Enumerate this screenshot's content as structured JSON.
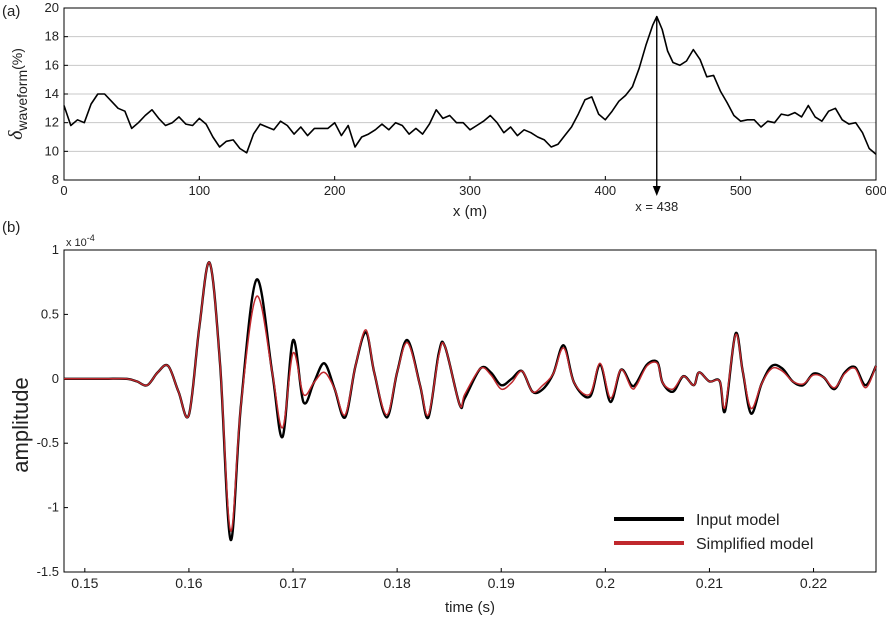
{
  "chart_data": [
    {
      "panel_label": "(a)",
      "type": "line",
      "xlabel": "x (m)",
      "ylabel_symbol": "δ",
      "ylabel_sub": "waveform",
      "ylabel_unit": "(%)",
      "xlim": [
        0,
        600
      ],
      "ylim": [
        8,
        20
      ],
      "xticks": [
        0,
        100,
        200,
        300,
        400,
        500,
        600
      ],
      "yticks": [
        8,
        10,
        12,
        14,
        16,
        18,
        20
      ],
      "grid": "horizontal",
      "annotation": {
        "text": "x = 438",
        "x": 438
      },
      "series": [
        {
          "color": "#000000",
          "x": [
            0,
            5,
            10,
            15,
            20,
            25,
            30,
            35,
            40,
            45,
            50,
            55,
            60,
            65,
            70,
            75,
            80,
            85,
            90,
            95,
            100,
            105,
            110,
            115,
            120,
            125,
            130,
            135,
            140,
            145,
            150,
            155,
            160,
            165,
            170,
            175,
            180,
            185,
            190,
            195,
            200,
            205,
            210,
            215,
            220,
            225,
            230,
            235,
            240,
            245,
            250,
            255,
            260,
            265,
            270,
            275,
            280,
            285,
            290,
            295,
            300,
            305,
            310,
            315,
            320,
            325,
            330,
            335,
            340,
            345,
            350,
            355,
            360,
            365,
            370,
            375,
            380,
            385,
            390,
            395,
            400,
            405,
            410,
            415,
            420,
            425,
            430,
            435,
            438,
            442,
            446,
            450,
            455,
            460,
            465,
            470,
            475,
            480,
            485,
            490,
            495,
            500,
            505,
            510,
            515,
            520,
            525,
            530,
            535,
            540,
            545,
            550,
            555,
            560,
            565,
            570,
            575,
            580,
            585,
            590,
            595,
            600
          ],
          "y": [
            13.2,
            11.8,
            12.2,
            12.0,
            13.3,
            14.0,
            14.0,
            13.5,
            13.0,
            12.8,
            11.6,
            12.0,
            12.5,
            12.9,
            12.3,
            11.8,
            12.0,
            12.4,
            11.9,
            11.8,
            12.3,
            11.9,
            11.0,
            10.3,
            10.7,
            10.8,
            10.2,
            9.9,
            11.2,
            11.9,
            11.7,
            11.5,
            12.1,
            11.8,
            11.2,
            11.7,
            11.1,
            11.6,
            11.6,
            11.6,
            12.0,
            11.1,
            11.8,
            10.3,
            11.0,
            11.2,
            11.5,
            11.9,
            11.5,
            12.0,
            11.8,
            11.2,
            11.6,
            11.2,
            11.9,
            12.9,
            12.3,
            12.5,
            12.0,
            12.0,
            11.5,
            11.8,
            12.1,
            12.5,
            12.0,
            11.3,
            11.7,
            11.1,
            11.5,
            11.3,
            11.0,
            10.8,
            10.3,
            10.5,
            11.1,
            11.7,
            12.6,
            13.6,
            13.8,
            12.6,
            12.2,
            12.8,
            13.5,
            13.9,
            14.5,
            15.8,
            17.4,
            18.8,
            19.4,
            18.5,
            17.0,
            16.2,
            16.0,
            16.3,
            17.1,
            16.4,
            15.2,
            15.3,
            14.2,
            13.4,
            12.5,
            12.1,
            12.2,
            12.2,
            11.7,
            12.1,
            12.0,
            12.6,
            12.5,
            12.7,
            12.4,
            13.2,
            12.4,
            12.1,
            12.8,
            13.0,
            12.2,
            11.9,
            12.0,
            11.3,
            10.2,
            9.8
          ]
        }
      ]
    },
    {
      "panel_label": "(b)",
      "type": "line",
      "xlabel": "time (s)",
      "ylabel": "amplitude",
      "y_multiplier": "x 10",
      "y_multiplier_exp": "-4",
      "xlim": [
        0.148,
        0.226
      ],
      "ylim": [
        -1.5,
        1.0
      ],
      "xticks": [
        0.15,
        0.16,
        0.17,
        0.18,
        0.19,
        0.2,
        0.21,
        0.22
      ],
      "xticklabels": [
        "0.15",
        "0.16",
        "0.17",
        "0.18",
        "0.19",
        "0.2",
        "0.21",
        "0.22"
      ],
      "yticks": [
        1,
        0.5,
        0,
        -0.5,
        -1,
        -1.5
      ],
      "yticklabels": [
        "1",
        "0.5",
        "0",
        "-0.5",
        "-1",
        "-1.5"
      ],
      "grid": "off",
      "legend_position": "bottom-right",
      "series": [
        {
          "name": "Input model",
          "color": "#000000",
          "x": [
            0.148,
            0.15,
            0.152,
            0.154,
            0.155,
            0.156,
            0.157,
            0.158,
            0.159,
            0.16,
            0.161,
            0.162,
            0.163,
            0.164,
            0.165,
            0.1665,
            0.168,
            0.169,
            0.17,
            0.171,
            0.172,
            0.173,
            0.174,
            0.175,
            0.176,
            0.177,
            0.1778,
            0.179,
            0.18,
            0.181,
            0.1822,
            0.183,
            0.184,
            0.1846,
            0.186,
            0.1865,
            0.188,
            0.189,
            0.19,
            0.191,
            0.192,
            0.193,
            0.194,
            0.195,
            0.196,
            0.197,
            0.1985,
            0.1995,
            0.2005,
            0.2015,
            0.2025,
            0.203,
            0.204,
            0.205,
            0.2055,
            0.2065,
            0.2075,
            0.2085,
            0.209,
            0.21,
            0.211,
            0.2115,
            0.2125,
            0.2132,
            0.214,
            0.215,
            0.216,
            0.217,
            0.218,
            0.219,
            0.22,
            0.221,
            0.222,
            0.223,
            0.224,
            0.225,
            0.226
          ],
          "y": [
            0,
            0,
            0,
            0,
            -0.02,
            -0.05,
            0.05,
            0.1,
            -0.1,
            -0.28,
            0.4,
            0.9,
            0.1,
            -1.25,
            -0.2,
            0.77,
            0.05,
            -0.45,
            0.3,
            -0.18,
            -0.03,
            0.12,
            -0.08,
            -0.3,
            0.1,
            0.36,
            0.05,
            -0.3,
            0.05,
            0.3,
            -0.05,
            -0.3,
            0.2,
            0.25,
            -0.2,
            -0.15,
            0.08,
            0.05,
            -0.05,
            0.0,
            0.06,
            -0.1,
            -0.08,
            0.04,
            0.26,
            -0.03,
            -0.14,
            0.11,
            -0.18,
            0.07,
            -0.05,
            -0.03,
            0.11,
            0.13,
            -0.03,
            -0.1,
            0.02,
            -0.05,
            0.05,
            -0.02,
            -0.02,
            -0.25,
            0.35,
            0.06,
            -0.27,
            -0.04,
            0.1,
            0.08,
            -0.02,
            -0.05,
            0.04,
            0.01,
            -0.08,
            0.05,
            0.09,
            -0.05,
            0.1
          ]
        },
        {
          "name": "Simplified model",
          "color": "#c0282d",
          "x": [
            0.148,
            0.15,
            0.152,
            0.154,
            0.155,
            0.156,
            0.157,
            0.158,
            0.159,
            0.16,
            0.161,
            0.162,
            0.163,
            0.164,
            0.165,
            0.1665,
            0.168,
            0.169,
            0.17,
            0.171,
            0.172,
            0.173,
            0.174,
            0.175,
            0.176,
            0.177,
            0.1778,
            0.179,
            0.18,
            0.181,
            0.1822,
            0.183,
            0.184,
            0.1846,
            0.186,
            0.1865,
            0.188,
            0.189,
            0.19,
            0.191,
            0.192,
            0.193,
            0.194,
            0.195,
            0.196,
            0.197,
            0.1985,
            0.1995,
            0.2005,
            0.2015,
            0.2025,
            0.203,
            0.204,
            0.205,
            0.2055,
            0.2065,
            0.2075,
            0.2085,
            0.209,
            0.21,
            0.211,
            0.2115,
            0.2125,
            0.2132,
            0.214,
            0.215,
            0.216,
            0.217,
            0.218,
            0.219,
            0.22,
            0.221,
            0.222,
            0.223,
            0.224,
            0.225,
            0.226
          ],
          "y": [
            0,
            0,
            0,
            0,
            -0.02,
            -0.05,
            0.05,
            0.1,
            -0.1,
            -0.28,
            0.4,
            0.9,
            0.1,
            -1.18,
            -0.2,
            0.64,
            0.05,
            -0.38,
            0.2,
            -0.12,
            -0.03,
            0.05,
            -0.08,
            -0.28,
            0.1,
            0.38,
            0.05,
            -0.28,
            0.05,
            0.28,
            -0.05,
            -0.28,
            0.18,
            0.25,
            -0.2,
            -0.12,
            0.08,
            0.03,
            -0.08,
            -0.03,
            0.06,
            -0.1,
            -0.05,
            0.04,
            0.24,
            -0.03,
            -0.12,
            0.12,
            -0.15,
            0.07,
            -0.07,
            -0.05,
            0.1,
            0.12,
            -0.03,
            -0.08,
            0.02,
            -0.05,
            0.05,
            -0.02,
            -0.02,
            -0.22,
            0.34,
            0.06,
            -0.23,
            -0.04,
            0.08,
            0.06,
            -0.02,
            -0.04,
            0.03,
            0.01,
            -0.07,
            0.04,
            0.08,
            -0.07,
            0.1
          ]
        }
      ]
    }
  ]
}
